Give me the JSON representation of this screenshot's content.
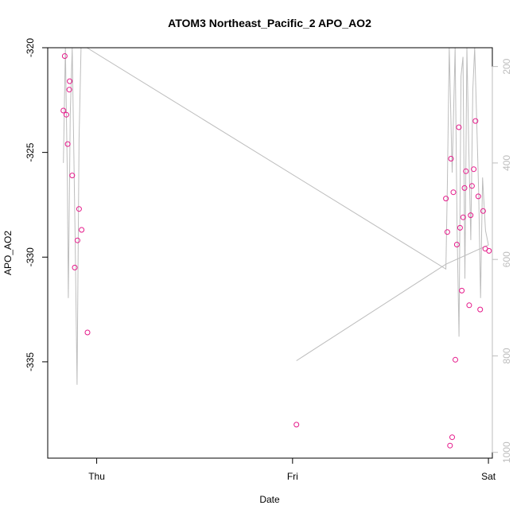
{
  "chart_data": {
    "type": "scatter",
    "title": "ATOM3 Northeast_Pacific_2 APO_AO2",
    "xlabel": "Date",
    "ylabel": "APO_AO2",
    "x_ticks": [
      "Thu",
      "Fri",
      "Sat"
    ],
    "x_tick_values": [
      0,
      1,
      2
    ],
    "xlim": [
      -0.25,
      2.02
    ],
    "ylim": [
      -339.6,
      -320.0
    ],
    "y_ticks": [
      -320,
      -325,
      -330,
      -335
    ],
    "y2_ticks": [
      200,
      400,
      600,
      800,
      1000
    ],
    "y2lim": [
      1012,
      161
    ],
    "point_color": "#e5198a",
    "line_color": "#bdbdbd",
    "points": {
      "x": [
        -0.17,
        -0.163,
        -0.155,
        -0.148,
        -0.14,
        -0.138,
        -0.125,
        -0.112,
        -0.098,
        -0.09,
        -0.077,
        -0.047,
        1.02,
        1.783,
        1.79,
        1.804,
        1.809,
        1.815,
        1.821,
        1.831,
        1.839,
        1.849,
        1.855,
        1.864,
        1.871,
        1.878,
        1.885,
        1.902,
        1.909,
        1.916,
        1.925,
        1.934,
        1.948,
        1.958,
        1.973,
        1.984,
        2.003
      ],
      "y": [
        -323.0,
        -320.4,
        -323.2,
        -324.6,
        -322.0,
        -321.6,
        -326.1,
        -330.5,
        -329.2,
        -327.7,
        -328.7,
        -333.6,
        -338.0,
        -327.2,
        -328.8,
        -339.0,
        -325.3,
        -338.6,
        -326.9,
        -334.9,
        -329.4,
        -323.8,
        -328.6,
        -331.6,
        -328.1,
        -326.7,
        -325.9,
        -332.3,
        -328.0,
        -326.6,
        -325.8,
        -323.5,
        -327.1,
        -332.5,
        -327.8,
        -329.6,
        -329.7
      ]
    },
    "secondary_series": {
      "name": "",
      "x": [
        -0.17,
        -0.16,
        -0.15,
        -0.145,
        -0.135,
        -0.125,
        -0.11,
        -0.1,
        -0.09,
        -0.08,
        -0.05,
        1.783,
        1.79,
        1.8,
        1.815,
        1.83,
        1.84,
        1.85,
        1.86,
        1.87,
        1.88,
        1.89,
        1.9,
        1.91,
        1.92,
        1.93,
        1.95,
        1.96,
        1.97,
        1.985,
        2.0,
        1.783,
        1.02
      ],
      "y": [
        400,
        150,
        420,
        680,
        300,
        150,
        560,
        860,
        350,
        150,
        150,
        620,
        450,
        150,
        420,
        150,
        540,
        760,
        220,
        180,
        640,
        150,
        370,
        560,
        250,
        150,
        460,
        680,
        430,
        540,
        570,
        610,
        810
      ]
    }
  }
}
